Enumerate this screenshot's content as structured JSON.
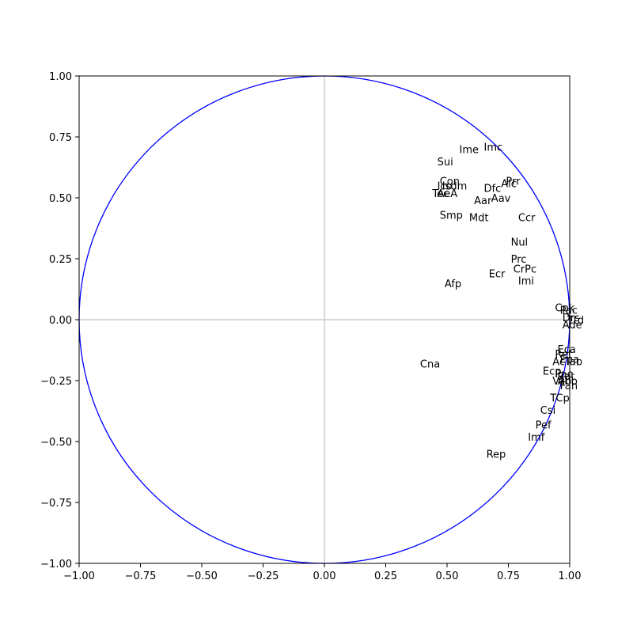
{
  "chart_data": {
    "type": "scatter",
    "title": "",
    "xlabel": "",
    "ylabel": "",
    "xlim": [
      -1.0,
      1.0
    ],
    "ylim": [
      -1.0,
      1.0
    ],
    "grid": false,
    "legend": "none",
    "unit_circle": {
      "radius": 1.0,
      "color": "#0000ff"
    },
    "axis_lines_color": "#c0c0c0",
    "x_ticks": [
      {
        "value": -1.0,
        "label": "−1.00"
      },
      {
        "value": -0.75,
        "label": "−0.75"
      },
      {
        "value": -0.5,
        "label": "−0.50"
      },
      {
        "value": -0.25,
        "label": "−0.25"
      },
      {
        "value": 0.0,
        "label": "0.00"
      },
      {
        "value": 0.25,
        "label": "0.25"
      },
      {
        "value": 0.5,
        "label": "0.50"
      },
      {
        "value": 0.75,
        "label": "0.75"
      },
      {
        "value": 1.0,
        "label": "1.00"
      }
    ],
    "y_ticks": [
      {
        "value": 1.0,
        "label": "1.00"
      },
      {
        "value": 0.75,
        "label": "0.75"
      },
      {
        "value": 0.5,
        "label": "0.50"
      },
      {
        "value": 0.25,
        "label": "0.25"
      },
      {
        "value": 0.0,
        "label": "0.00"
      },
      {
        "value": -0.25,
        "label": "−0.25"
      },
      {
        "value": -0.5,
        "label": "−0.50"
      },
      {
        "value": -0.75,
        "label": "−0.75"
      },
      {
        "value": -1.0,
        "label": "−1.00"
      }
    ],
    "points": [
      {
        "label": "Imc",
        "x": 0.65,
        "y": 0.71
      },
      {
        "label": "Ime",
        "x": 0.55,
        "y": 0.7
      },
      {
        "label": "Sui",
        "x": 0.46,
        "y": 0.65
      },
      {
        "label": "Con",
        "x": 0.47,
        "y": 0.57
      },
      {
        "label": "Prr",
        "x": 0.74,
        "y": 0.57
      },
      {
        "label": "Alc",
        "x": 0.72,
        "y": 0.56
      },
      {
        "label": "Ico",
        "x": 0.46,
        "y": 0.55
      },
      {
        "label": "Isdm",
        "x": 0.48,
        "y": 0.55
      },
      {
        "label": "Dfc",
        "x": 0.65,
        "y": 0.54
      },
      {
        "label": "Tec",
        "x": 0.44,
        "y": 0.52
      },
      {
        "label": "AeA",
        "x": 0.46,
        "y": 0.52
      },
      {
        "label": "Aav",
        "x": 0.68,
        "y": 0.5
      },
      {
        "label": "Aar",
        "x": 0.61,
        "y": 0.49
      },
      {
        "label": "Smp",
        "x": 0.47,
        "y": 0.43
      },
      {
        "label": "Mdt",
        "x": 0.59,
        "y": 0.42
      },
      {
        "label": "Ccr",
        "x": 0.79,
        "y": 0.42
      },
      {
        "label": "Nul",
        "x": 0.76,
        "y": 0.32
      },
      {
        "label": "Prc",
        "x": 0.76,
        "y": 0.25
      },
      {
        "label": "CrPc",
        "x": 0.77,
        "y": 0.21
      },
      {
        "label": "Ecr",
        "x": 0.67,
        "y": 0.19
      },
      {
        "label": "Imi",
        "x": 0.79,
        "y": 0.16
      },
      {
        "label": "Afp",
        "x": 0.49,
        "y": 0.15
      },
      {
        "label": "Cpk",
        "x": 0.94,
        "y": 0.05
      },
      {
        "label": "Pac",
        "x": 0.96,
        "y": 0.04
      },
      {
        "label": "Drs",
        "x": 0.97,
        "y": 0.01
      },
      {
        "label": "Ttd",
        "x": 0.99,
        "y": 0.0
      },
      {
        "label": "Ade",
        "x": 0.97,
        "y": -0.02
      },
      {
        "label": "Eca",
        "x": 0.95,
        "y": -0.12
      },
      {
        "label": "Ret",
        "x": 0.94,
        "y": -0.14
      },
      {
        "label": "Epa",
        "x": 0.96,
        "y": -0.16
      },
      {
        "label": "AcTab",
        "x": 0.93,
        "y": -0.17
      },
      {
        "label": "Cna",
        "x": 0.39,
        "y": -0.18
      },
      {
        "label": "Ecp",
        "x": 0.89,
        "y": -0.21
      },
      {
        "label": "Pac",
        "x": 0.94,
        "y": -0.22
      },
      {
        "label": "Rat",
        "x": 0.95,
        "y": -0.23
      },
      {
        "label": "Vab",
        "x": 0.93,
        "y": -0.25
      },
      {
        "label": "Ahb",
        "x": 0.95,
        "y": -0.25
      },
      {
        "label": "Fan",
        "x": 0.96,
        "y": -0.27
      },
      {
        "label": "TCp",
        "x": 0.92,
        "y": -0.32
      },
      {
        "label": "Csi",
        "x": 0.88,
        "y": -0.37
      },
      {
        "label": "Pef",
        "x": 0.86,
        "y": -0.43
      },
      {
        "label": "Imf",
        "x": 0.83,
        "y": -0.48
      },
      {
        "label": "Rep",
        "x": 0.66,
        "y": -0.55
      }
    ]
  }
}
